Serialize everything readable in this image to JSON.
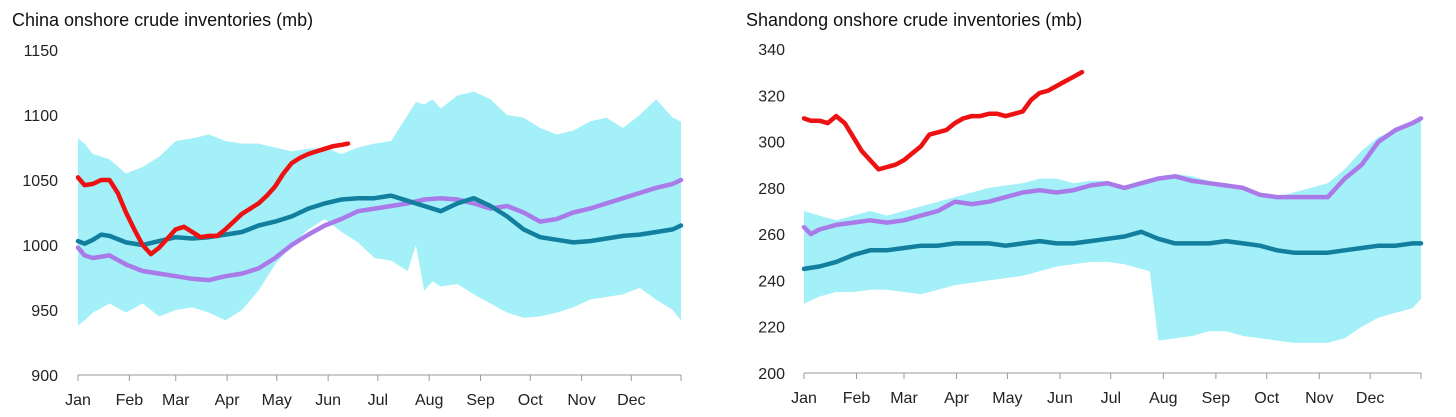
{
  "colors": {
    "range_fill": "#a3f0f9",
    "series_2026": "#ee1111",
    "series_2025": "#a97ae8",
    "series_avg": "#127f9e",
    "axis": "#999999",
    "text": "#222222"
  },
  "chart_data": [
    {
      "type": "area",
      "title": "China onshore crude inventories (mb)",
      "xlabel": "",
      "ylabel": "",
      "x_unit": "day of year",
      "xlim": [
        1,
        365
      ],
      "ylim": [
        900,
        1150
      ],
      "yticks": [
        900,
        950,
        1000,
        1050,
        1100,
        1150
      ],
      "month_labels": [
        "Jan",
        "Feb",
        "Mar",
        "Apr",
        "May",
        "Jun",
        "Jul",
        "Aug",
        "Sep",
        "Oct",
        "Nov",
        "Dec"
      ],
      "grid": false,
      "legend": "none",
      "range_band": {
        "x": [
          1,
          5,
          10,
          20,
          30,
          40,
          50,
          60,
          70,
          80,
          90,
          100,
          110,
          120,
          130,
          140,
          150,
          160,
          170,
          180,
          190,
          200,
          205,
          210,
          215,
          220,
          230,
          240,
          250,
          260,
          270,
          280,
          290,
          300,
          310,
          320,
          330,
          340,
          350,
          360,
          365
        ],
        "lower": [
          938,
          942,
          948,
          955,
          948,
          955,
          945,
          950,
          952,
          948,
          942,
          950,
          965,
          985,
          1000,
          1012,
          1020,
          1010,
          1002,
          990,
          988,
          980,
          1000,
          965,
          972,
          968,
          970,
          962,
          955,
          948,
          944,
          945,
          948,
          952,
          958,
          960,
          962,
          967,
          958,
          950,
          942
        ],
        "upper": [
          1082,
          1078,
          1070,
          1066,
          1055,
          1060,
          1068,
          1080,
          1082,
          1085,
          1080,
          1078,
          1078,
          1075,
          1072,
          1074,
          1075,
          1070,
          1075,
          1078,
          1080,
          1100,
          1110,
          1108,
          1112,
          1105,
          1115,
          1118,
          1112,
          1100,
          1098,
          1090,
          1085,
          1088,
          1095,
          1098,
          1090,
          1100,
          1112,
          1098,
          1095
        ]
      },
      "series": [
        {
          "color": "#a97ae8",
          "x": [
            1,
            5,
            10,
            20,
            30,
            40,
            50,
            60,
            70,
            80,
            90,
            100,
            110,
            120,
            130,
            140,
            150,
            160,
            170,
            180,
            190,
            200,
            210,
            220,
            230,
            240,
            250,
            260,
            270,
            280,
            290,
            300,
            310,
            320,
            330,
            340,
            350,
            360,
            365
          ],
          "y": [
            998,
            992,
            990,
            992,
            985,
            980,
            978,
            976,
            974,
            973,
            976,
            978,
            982,
            990,
            1000,
            1008,
            1015,
            1020,
            1026,
            1028,
            1030,
            1032,
            1035,
            1036,
            1035,
            1032,
            1028,
            1030,
            1025,
            1018,
            1020,
            1025,
            1028,
            1032,
            1036,
            1040,
            1044,
            1047,
            1050
          ]
        },
        {
          "color": "#127f9e",
          "x": [
            1,
            5,
            10,
            15,
            20,
            30,
            40,
            50,
            60,
            70,
            80,
            90,
            100,
            110,
            120,
            130,
            140,
            150,
            160,
            170,
            180,
            190,
            200,
            210,
            220,
            230,
            240,
            250,
            260,
            270,
            280,
            290,
            300,
            310,
            320,
            330,
            340,
            350,
            360,
            365
          ],
          "y": [
            1003,
            1001,
            1004,
            1008,
            1007,
            1002,
            1000,
            1003,
            1006,
            1005,
            1006,
            1008,
            1010,
            1015,
            1018,
            1022,
            1028,
            1032,
            1035,
            1036,
            1036,
            1038,
            1034,
            1030,
            1026,
            1032,
            1036,
            1030,
            1022,
            1012,
            1006,
            1004,
            1002,
            1003,
            1005,
            1007,
            1008,
            1010,
            1012,
            1015
          ]
        },
        {
          "color": "#ee1111",
          "x": [
            1,
            5,
            10,
            15,
            20,
            25,
            30,
            35,
            40,
            45,
            50,
            55,
            60,
            65,
            70,
            75,
            80,
            85,
            90,
            95,
            100,
            105,
            110,
            115,
            120,
            125,
            130,
            135,
            140,
            145,
            150,
            155,
            160,
            164
          ],
          "y": [
            1052,
            1046,
            1047,
            1050,
            1050,
            1040,
            1025,
            1012,
            1000,
            993,
            998,
            1005,
            1012,
            1014,
            1010,
            1006,
            1007,
            1007,
            1012,
            1018,
            1024,
            1028,
            1032,
            1038,
            1045,
            1055,
            1063,
            1067,
            1070,
            1072,
            1074,
            1076,
            1077,
            1078
          ]
        }
      ]
    },
    {
      "type": "area",
      "title": "Shandong onshore crude inventories (mb)",
      "xlabel": "",
      "ylabel": "",
      "x_unit": "day of year",
      "xlim": [
        1,
        365
      ],
      "ylim": [
        200,
        340
      ],
      "yticks": [
        200,
        220,
        240,
        260,
        280,
        300,
        320,
        340
      ],
      "month_labels": [
        "Jan",
        "Feb",
        "Mar",
        "Apr",
        "May",
        "Jun",
        "Jul",
        "Aug",
        "Sep",
        "Oct",
        "Nov",
        "Dec"
      ],
      "grid": false,
      "legend": "none",
      "range_band": {
        "x": [
          1,
          10,
          20,
          30,
          40,
          50,
          60,
          70,
          80,
          90,
          100,
          110,
          120,
          130,
          140,
          150,
          160,
          170,
          180,
          190,
          200,
          205,
          210,
          220,
          230,
          240,
          250,
          260,
          270,
          280,
          290,
          300,
          310,
          320,
          330,
          340,
          350,
          360,
          365
        ],
        "lower": [
          230,
          233,
          235,
          235,
          236,
          236,
          235,
          234,
          236,
          238,
          239,
          240,
          241,
          242,
          244,
          246,
          247,
          248,
          248,
          247,
          245,
          244,
          214,
          215,
          216,
          218,
          218,
          216,
          215,
          214,
          213,
          213,
          213,
          215,
          220,
          224,
          226,
          228,
          232
        ],
        "upper": [
          270,
          268,
          266,
          268,
          270,
          268,
          270,
          272,
          274,
          276,
          278,
          280,
          281,
          282,
          284,
          284,
          282,
          283,
          283,
          280,
          282,
          284,
          285,
          286,
          285,
          283,
          280,
          279,
          278,
          276,
          278,
          280,
          282,
          288,
          296,
          302,
          305,
          308,
          310
        ]
      },
      "series": [
        {
          "color": "#a97ae8",
          "x": [
            1,
            5,
            10,
            20,
            30,
            40,
            50,
            60,
            70,
            80,
            90,
            100,
            110,
            120,
            130,
            140,
            150,
            160,
            170,
            180,
            190,
            200,
            210,
            220,
            230,
            240,
            250,
            260,
            270,
            280,
            290,
            300,
            310,
            320,
            330,
            340,
            350,
            360,
            365
          ],
          "y": [
            263,
            260,
            262,
            264,
            265,
            266,
            265,
            266,
            268,
            270,
            274,
            273,
            274,
            276,
            278,
            279,
            278,
            279,
            281,
            282,
            280,
            282,
            284,
            285,
            283,
            282,
            281,
            280,
            277,
            276,
            276,
            276,
            276,
            284,
            290,
            300,
            305,
            308,
            310
          ]
        },
        {
          "color": "#127f9e",
          "x": [
            1,
            10,
            20,
            30,
            40,
            50,
            60,
            70,
            80,
            90,
            100,
            110,
            120,
            130,
            140,
            150,
            160,
            170,
            180,
            190,
            200,
            210,
            220,
            230,
            240,
            250,
            260,
            270,
            280,
            290,
            300,
            310,
            320,
            330,
            340,
            350,
            360,
            365
          ],
          "y": [
            245,
            246,
            248,
            251,
            253,
            253,
            254,
            255,
            255,
            256,
            256,
            256,
            255,
            256,
            257,
            256,
            256,
            257,
            258,
            259,
            261,
            258,
            256,
            256,
            256,
            257,
            256,
            255,
            253,
            252,
            252,
            252,
            253,
            254,
            255,
            255,
            256,
            256
          ]
        },
        {
          "color": "#ee1111",
          "x": [
            1,
            5,
            10,
            15,
            20,
            25,
            30,
            35,
            40,
            45,
            50,
            55,
            60,
            65,
            70,
            75,
            80,
            85,
            90,
            95,
            100,
            105,
            110,
            115,
            120,
            125,
            130,
            135,
            140,
            145,
            150,
            155,
            160,
            165
          ],
          "y": [
            310,
            309,
            309,
            308,
            311,
            308,
            302,
            296,
            292,
            288,
            289,
            290,
            292,
            295,
            298,
            303,
            304,
            305,
            308,
            310,
            311,
            311,
            312,
            312,
            311,
            312,
            313,
            318,
            321,
            322,
            324,
            326,
            328,
            330
          ]
        }
      ]
    }
  ]
}
